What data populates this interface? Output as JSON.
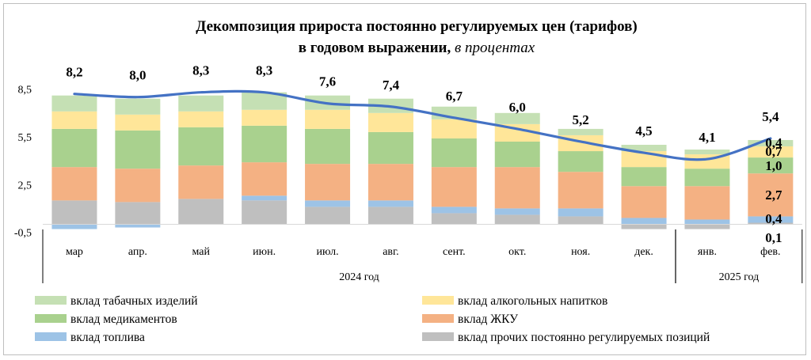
{
  "title_line1": "Декомпозиция прироста постоянно регулируемых цен (тарифов)",
  "title_line2": "в годовом выражении,",
  "title_unit": "в процентах",
  "chart_data": {
    "type": "bar",
    "stacked": true,
    "categories": [
      "мар",
      "апр.",
      "май",
      "июн.",
      "июл.",
      "авг.",
      "сент.",
      "окт.",
      "ноя.",
      "дек.",
      "янв.",
      "фев."
    ],
    "groups": [
      {
        "label": "2024 год",
        "from": 0,
        "to": 9
      },
      {
        "label": "2025 год",
        "from": 10,
        "to": 11
      }
    ],
    "yticks": [
      "-0,5",
      "2,5",
      "5,5",
      "8,5"
    ],
    "ytick_values": [
      -0.5,
      2.5,
      5.5,
      8.5
    ],
    "ylim": [
      -0.5,
      9.5
    ],
    "series": [
      {
        "name": "вклад прочих постоянно регулируемых позиций",
        "color": "#bfbfbf",
        "values": [
          1.5,
          1.4,
          1.6,
          1.5,
          1.1,
          1.1,
          0.7,
          0.6,
          0.5,
          -0.3,
          -0.3,
          0.1
        ]
      },
      {
        "name": "вклад топлива",
        "color": "#9dc3e6",
        "values": [
          -0.3,
          -0.2,
          0.0,
          0.3,
          0.4,
          0.4,
          0.4,
          0.4,
          0.5,
          0.4,
          0.3,
          0.4
        ]
      },
      {
        "name": "вклад ЖКУ",
        "color": "#f4b183",
        "values": [
          2.1,
          2.1,
          2.1,
          2.1,
          2.3,
          2.3,
          2.5,
          2.6,
          2.3,
          2.0,
          2.1,
          2.7
        ]
      },
      {
        "name": "вклад медикаментов",
        "color": "#a9d18e",
        "values": [
          2.4,
          2.4,
          2.4,
          2.3,
          2.2,
          2.0,
          1.8,
          1.6,
          1.3,
          1.2,
          1.1,
          1.0
        ]
      },
      {
        "name": "вклад алкогольных напитков",
        "color": "#ffe699",
        "values": [
          1.1,
          1.0,
          1.0,
          1.0,
          1.2,
          1.2,
          1.2,
          1.1,
          1.0,
          1.0,
          0.9,
          0.7
        ]
      },
      {
        "name": "вклад табачных изделий",
        "color": "#c5e0b4",
        "values": [
          1.0,
          1.0,
          1.0,
          1.1,
          0.9,
          0.9,
          0.8,
          0.7,
          0.4,
          0.4,
          0.3,
          0.4
        ]
      }
    ],
    "line": {
      "name": "",
      "color": "#4472c4",
      "values": [
        8.2,
        8.0,
        8.3,
        8.3,
        7.6,
        7.4,
        6.7,
        6.0,
        5.2,
        4.5,
        4.1,
        5.4
      ],
      "labels": [
        "8,2",
        "8,0",
        "8,3",
        "8,3",
        "7,6",
        "7,4",
        "6,7",
        "6,0",
        "5,2",
        "4,5",
        "4,1",
        "5,4"
      ]
    },
    "last_bar_labels": [
      {
        "series_index": 0,
        "text": "0,1"
      },
      {
        "series_index": 1,
        "text": "0,4"
      },
      {
        "series_index": 2,
        "text": "2,7"
      },
      {
        "series_index": 3,
        "text": "1,0"
      },
      {
        "series_index": 4,
        "text": "0,7"
      },
      {
        "series_index": 5,
        "text": "0,4"
      }
    ],
    "legend": {
      "position": "bottom",
      "left": [
        "вклад табачных изделий",
        "вклад медикаментов",
        "вклад топлива"
      ],
      "right": [
        "вклад алкогольных напитков",
        "вклад ЖКУ",
        "вклад прочих постоянно регулируемых позиций"
      ]
    }
  }
}
